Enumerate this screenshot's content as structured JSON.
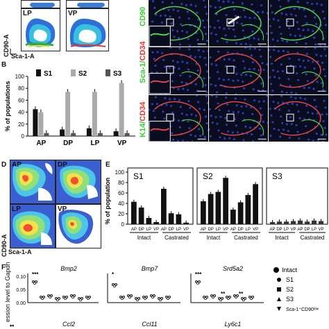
{
  "panels": {
    "a_top": {
      "lp": "LP",
      "vp": "VP",
      "ylabel": "CD90-A",
      "xlabel": "Sca-1-A"
    },
    "b": {
      "letter": "B"
    },
    "micro": {
      "row1": "CD90",
      "row2a": "Sca-1/",
      "row2b": "CD34",
      "row3a": "K14/",
      "row3b": "CD34"
    },
    "d": {
      "letter": "D",
      "ap": "AP",
      "dp": "DP",
      "lp": "LP",
      "vp": "VP",
      "ylabel": "CD90-A",
      "xlabel": "Sca-1-A"
    },
    "e": {
      "letter": "E"
    },
    "f": {
      "letter": "F",
      "ylabel": "ession level to Gapdh",
      "genes": [
        "Bmp2",
        "Bmp7",
        "Srd5a2"
      ],
      "genes2": [
        "Ccl2",
        "Ccl11",
        "Ly6c1"
      ],
      "sig": [
        "***",
        "*",
        "***",
        "**",
        "**"
      ],
      "legend": [
        "Intact",
        "S1",
        "S2",
        "S3",
        "Sca-1⁺CD90ˡᵒʷ"
      ],
      "yticks": [
        "0.10",
        "0.05",
        "0.00"
      ]
    }
  },
  "chart_data": [
    {
      "type": "bar",
      "title": "",
      "ylabel": "% of populations",
      "categories": [
        "AP",
        "DP",
        "LP",
        "VP"
      ],
      "ylim": [
        0,
        100
      ],
      "yticks": [
        "0",
        "20",
        "40",
        "60",
        "80",
        "100"
      ],
      "series": [
        {
          "name": "S1",
          "values": [
            45,
            11,
            13,
            8
          ],
          "color": "#111111"
        },
        {
          "name": "S2",
          "values": [
            40,
            74,
            74,
            89
          ],
          "color": "#aaaaaa"
        },
        {
          "name": "S3",
          "values": [
            5,
            5,
            5,
            5
          ],
          "color": "#555555"
        }
      ]
    },
    {
      "type": "bar",
      "ylabel": "% of population",
      "ylim": [
        0,
        100
      ],
      "yticks": [
        "0",
        "20",
        "40",
        "60",
        "80",
        "100"
      ],
      "categories": [
        "AP",
        "DP",
        "LP",
        "VP"
      ],
      "groups": [
        "Intact",
        "Castrated"
      ],
      "series": [
        {
          "name": "S1",
          "intact": [
            43,
            32,
            12,
            4
          ],
          "castrated": [
            68,
            21,
            19,
            3
          ]
        },
        {
          "name": "S2",
          "intact": [
            44,
            58,
            62,
            89
          ],
          "castrated": [
            28,
            42,
            56,
            77
          ]
        },
        {
          "name": "S3",
          "intact": [
            4,
            5,
            5,
            6
          ],
          "castrated": [
            7,
            5,
            7,
            6
          ]
        }
      ]
    }
  ]
}
